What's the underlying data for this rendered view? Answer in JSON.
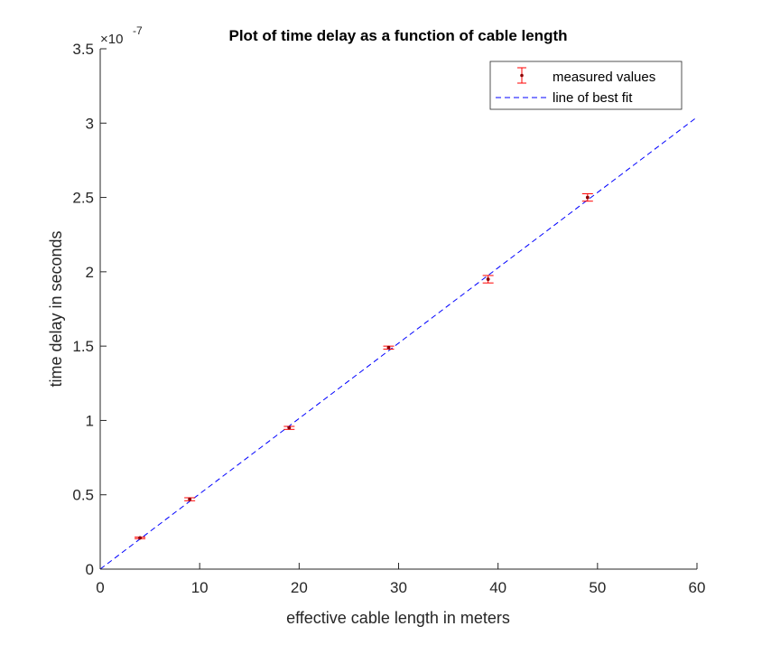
{
  "chart_data": {
    "type": "scatter",
    "title": "Plot of time delay as a function of cable length",
    "xlabel": "effective cable length in meters",
    "ylabel": "time delay in seconds",
    "xlim": [
      0,
      60
    ],
    "ylim": [
      0,
      3.5e-07
    ],
    "exponent_label": {
      "base": "×10",
      "power": "-7"
    },
    "x_ticks": [
      0,
      10,
      20,
      30,
      40,
      50,
      60
    ],
    "x_tick_labels": [
      "0",
      "10",
      "20",
      "30",
      "40",
      "50",
      "60"
    ],
    "y_ticks": [
      0,
      0.5,
      1,
      1.5,
      2,
      2.5,
      3,
      3.5
    ],
    "y_tick_labels": [
      "0",
      "0.5",
      "1",
      "1.5",
      "2",
      "2.5",
      "3",
      "3.5"
    ],
    "grid": false,
    "legend": {
      "location": "top-right",
      "entries": [
        "measured values",
        "line of best fit"
      ]
    },
    "series": [
      {
        "name": "measured values",
        "style": "errorbar",
        "color": "#ff0000",
        "marker_color": "#8b0000",
        "points": [
          {
            "x": 4,
            "y": 2.1e-08,
            "err": 5e-10
          },
          {
            "x": 9,
            "y": 4.7e-08,
            "err": 1e-09
          },
          {
            "x": 19,
            "y": 9.5e-08,
            "err": 1e-09
          },
          {
            "x": 29,
            "y": 1.49e-07,
            "err": 1e-09
          },
          {
            "x": 39,
            "y": 1.95e-07,
            "err": 2.5e-09
          },
          {
            "x": 49,
            "y": 2.5e-07,
            "err": 2.5e-09
          }
        ]
      },
      {
        "name": "line of best fit",
        "style": "dashed-line",
        "color": "#0000ff",
        "points": [
          {
            "x": 0,
            "y": 0
          },
          {
            "x": 60,
            "y": 3.04e-07
          }
        ]
      }
    ]
  }
}
